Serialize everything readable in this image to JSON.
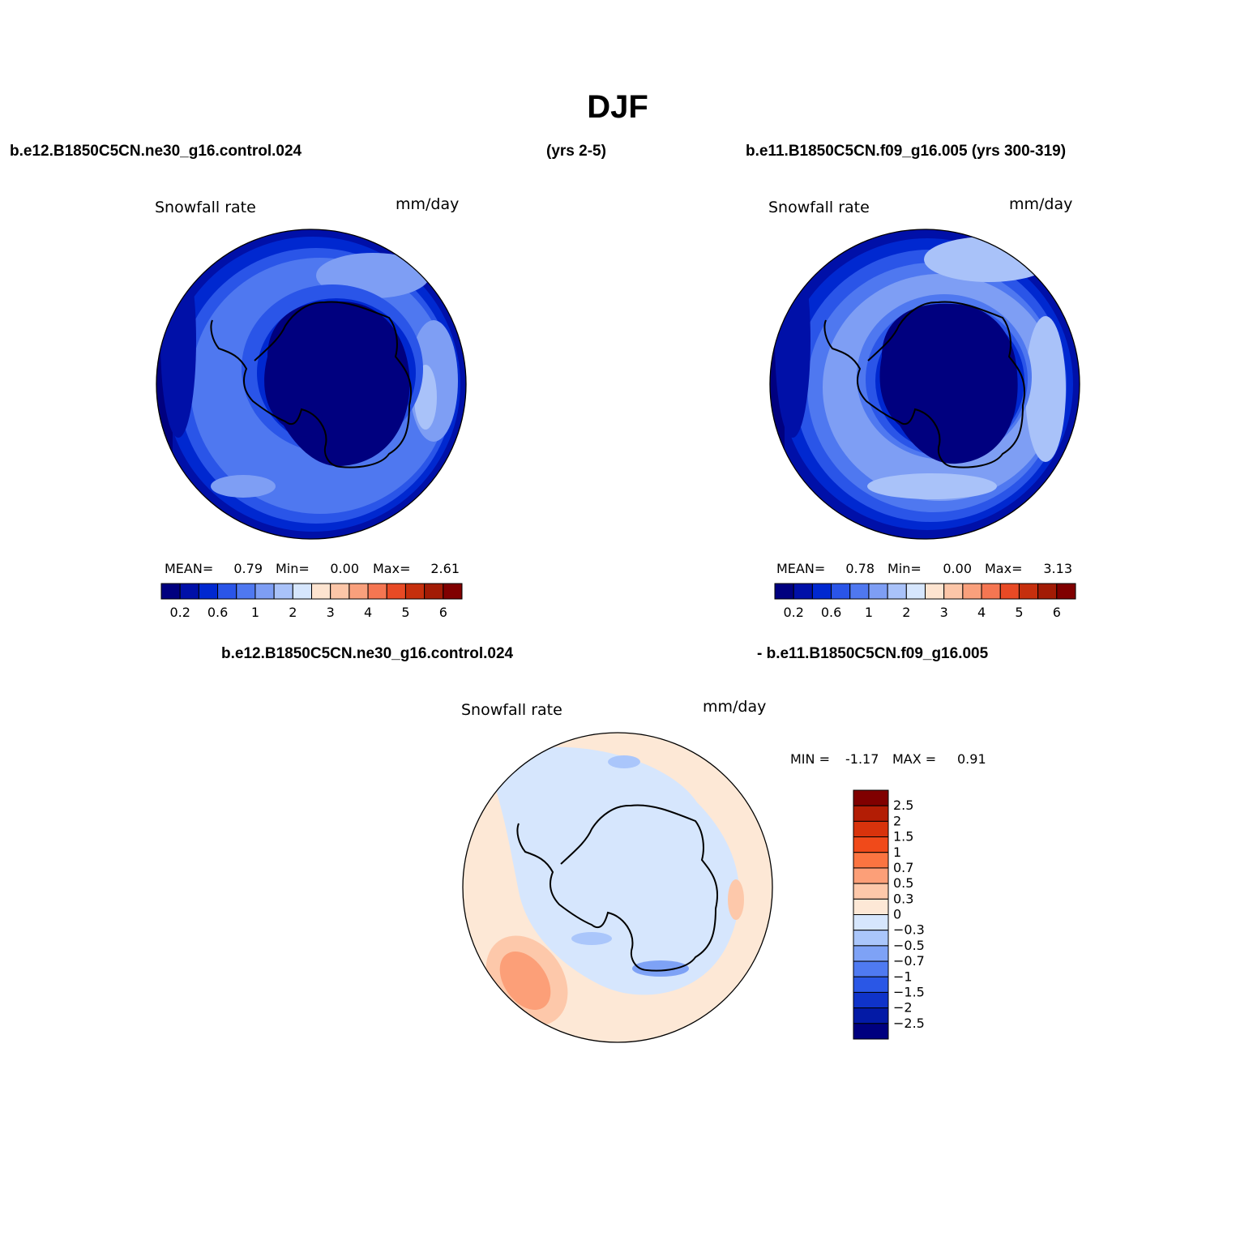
{
  "figure_title": "DJF",
  "header": {
    "left_case": "b.e12.B1850C5CN.ne30_g16.control.024",
    "left_years": "(yrs 2-5)",
    "right_case": "b.e11.B1850C5CN.f09_g16.005 (yrs 300-319)"
  },
  "diff_header": {
    "left": "b.e12.B1850C5CN.ne30_g16.control.024",
    "right": "- b.e11.B1850C5CN.f09_g16.005"
  },
  "chart_data": [
    {
      "type": "heatmap",
      "projection": "south polar stereographic",
      "title": "Snowfall rate",
      "units": "mm/day",
      "stats": {
        "mean_label": "MEAN=",
        "mean": "0.79",
        "min_label": "Min=",
        "min": "0.00",
        "max_label": "Max=",
        "max": "2.61"
      },
      "colorbar": {
        "levels": [
          0.2,
          0.4,
          0.6,
          0.8,
          1,
          1.5,
          2,
          2.5,
          3,
          3.5,
          4,
          4.5,
          5,
          5.5,
          6
        ],
        "tick_labels": [
          "0.2",
          "0.6",
          "1",
          "2",
          "3",
          "4",
          "5",
          "6"
        ],
        "colors": [
          "#00007f",
          "#0010a8",
          "#0028d0",
          "#2a55e8",
          "#4f78f0",
          "#7e9ef4",
          "#a9c2f9",
          "#d6e6fd",
          "#fde4d0",
          "#fcc6a8",
          "#f9a07c",
          "#f57652",
          "#e84a25",
          "#c62f0d",
          "#a21b05",
          "#800000"
        ]
      },
      "field_description": "ocean ~1-1.5 mm/day, interior Antarctica < 0.2 mm/day, outer ring 0.4-0.8 mm/day"
    },
    {
      "type": "heatmap",
      "projection": "south polar stereographic",
      "title": "Snowfall rate",
      "units": "mm/day",
      "stats": {
        "mean_label": "MEAN=",
        "mean": "0.78",
        "min_label": "Min=",
        "min": "0.00",
        "max_label": "Max=",
        "max": "3.13"
      },
      "colorbar": {
        "levels": [
          0.2,
          0.4,
          0.6,
          0.8,
          1,
          1.5,
          2,
          2.5,
          3,
          3.5,
          4,
          4.5,
          5,
          5.5,
          6
        ],
        "tick_labels": [
          "0.2",
          "0.6",
          "1",
          "2",
          "3",
          "4",
          "5",
          "6"
        ],
        "colors": [
          "#00007f",
          "#0010a8",
          "#0028d0",
          "#2a55e8",
          "#4f78f0",
          "#7e9ef4",
          "#a9c2f9",
          "#d6e6fd",
          "#fde4d0",
          "#fcc6a8",
          "#f9a07c",
          "#f57652",
          "#e84a25",
          "#c62f0d",
          "#a21b05",
          "#800000"
        ]
      }
    },
    {
      "type": "heatmap",
      "projection": "south polar stereographic",
      "title": "Snowfall rate",
      "units": "mm/day",
      "stats": {
        "min_label": "MIN =",
        "min": "-1.17",
        "max_label": "MAX =",
        "max": "0.91"
      },
      "colorbar": {
        "orientation": "vertical",
        "tick_labels": [
          "2.5",
          "2",
          "1.5",
          "1",
          "0.7",
          "0.5",
          "0.3",
          "0",
          "−0.3",
          "−0.5",
          "−0.7",
          "−1",
          "−1.5",
          "−2",
          "−2.5"
        ],
        "colors": [
          "#800000",
          "#b31d05",
          "#d8330c",
          "#f04a1a",
          "#fb7441",
          "#fc9f78",
          "#fdc8aa",
          "#fde8d6",
          "#d6e6fd",
          "#aac6fb",
          "#7ea2f6",
          "#4f7af1",
          "#2a57e6",
          "#0f33c9",
          "#031aa6",
          "#00007f"
        ]
      }
    }
  ]
}
